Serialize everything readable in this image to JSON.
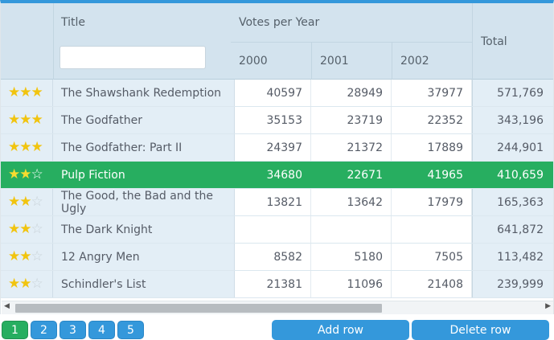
{
  "header": {
    "title_label": "Title",
    "votes_label": "Votes per Year",
    "years": [
      "2000",
      "2001",
      "2002"
    ],
    "total_label": "Total",
    "filter_value": ""
  },
  "rows": [
    {
      "rating": 3,
      "title": "The Shawshank Redemption",
      "y2000": "40597",
      "y2001": "28949",
      "y2002": "37977",
      "total": "571,769"
    },
    {
      "rating": 3,
      "title": "The Godfather",
      "y2000": "35153",
      "y2001": "23719",
      "y2002": "22352",
      "total": "343,196"
    },
    {
      "rating": 3,
      "title": "The Godfather: Part II",
      "y2000": "24397",
      "y2001": "21372",
      "y2002": "17889",
      "total": "244,901"
    },
    {
      "rating": 2,
      "title": "Pulp Fiction",
      "y2000": "34680",
      "y2001": "22671",
      "y2002": "41965",
      "total": "410,659",
      "selected": true
    },
    {
      "rating": 2,
      "title": "The Good, the Bad and the Ugly",
      "y2000": "13821",
      "y2001": "13642",
      "y2002": "17979",
      "total": "165,363"
    },
    {
      "rating": 2,
      "title": "The Dark Knight",
      "y2000": "",
      "y2001": "",
      "y2002": "",
      "total": "641,872"
    },
    {
      "rating": 2,
      "title": "12 Angry Men",
      "y2000": "8582",
      "y2001": "5180",
      "y2002": "7505",
      "total": "113,482"
    },
    {
      "rating": 2,
      "title": "Schindler's List",
      "y2000": "21381",
      "y2001": "11096",
      "y2002": "21408",
      "total": "239,999"
    }
  ],
  "pager": {
    "pages": [
      "1",
      "2",
      "3",
      "4",
      "5"
    ],
    "active": "1"
  },
  "buttons": {
    "add_row": "Add row",
    "delete_row": "Delete row"
  },
  "colors": {
    "accent": "#3498db",
    "selected": "#27ae60",
    "star": "#f1c40f"
  }
}
